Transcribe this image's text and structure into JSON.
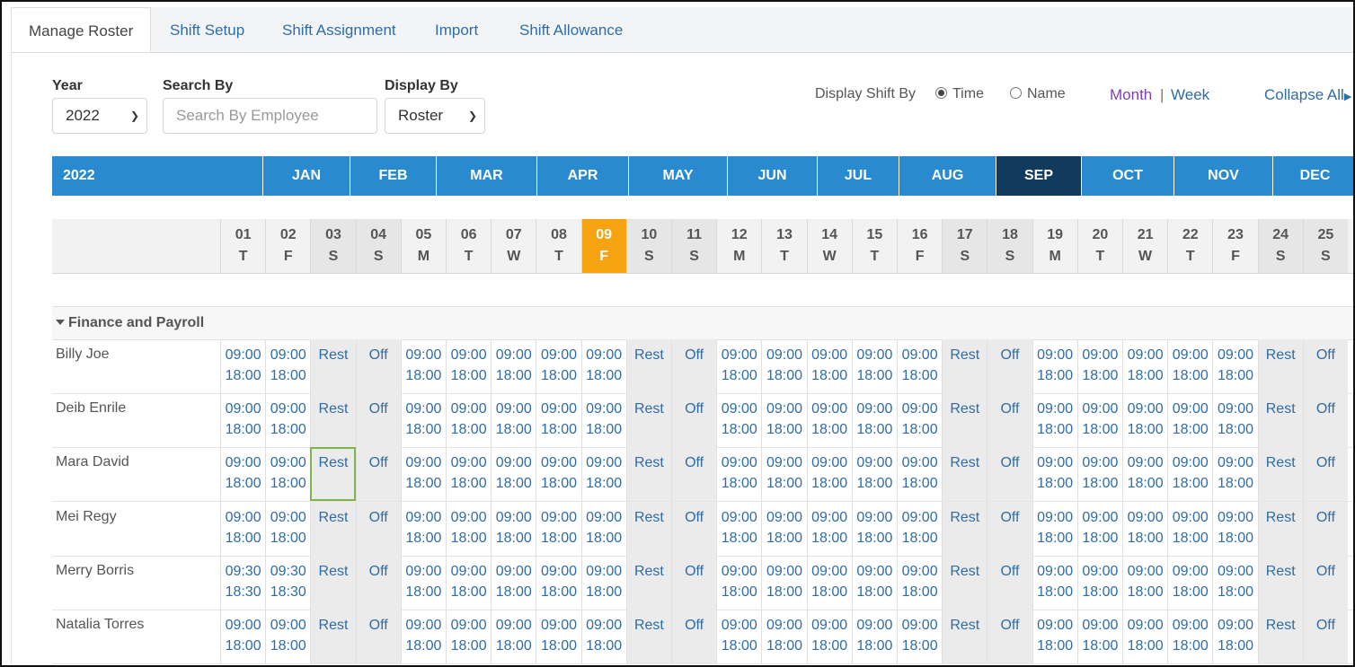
{
  "tabs": [
    {
      "label": "Manage Roster",
      "active": true
    },
    {
      "label": "Shift Setup",
      "active": false
    },
    {
      "label": "Shift Assignment",
      "active": false
    },
    {
      "label": "Import",
      "active": false
    },
    {
      "label": "Shift Allowance",
      "active": false
    }
  ],
  "filters": {
    "year_label": "Year",
    "year_value": "2022",
    "search_label": "Search By",
    "search_placeholder": "Search By Employee",
    "display_label": "Display By",
    "display_value": "Roster"
  },
  "display_shift": {
    "label": "Display Shift By",
    "options": [
      {
        "label": "Time",
        "selected": true
      },
      {
        "label": "Name",
        "selected": false
      }
    ]
  },
  "view_toggle": {
    "month": "Month",
    "separator": "|",
    "week": "Week"
  },
  "collapse_all": "Collapse All",
  "months_bar": {
    "year": "2022",
    "months": [
      "JAN",
      "FEB",
      "MAR",
      "APR",
      "MAY",
      "JUN",
      "JUL",
      "AUG",
      "SEP",
      "OCT",
      "NOV",
      "DEC"
    ],
    "selected": "SEP"
  },
  "days": [
    {
      "num": "01",
      "dow": "T"
    },
    {
      "num": "02",
      "dow": "F"
    },
    {
      "num": "03",
      "dow": "S",
      "weekend": true
    },
    {
      "num": "04",
      "dow": "S",
      "weekend": true
    },
    {
      "num": "05",
      "dow": "M"
    },
    {
      "num": "06",
      "dow": "T"
    },
    {
      "num": "07",
      "dow": "W"
    },
    {
      "num": "08",
      "dow": "T"
    },
    {
      "num": "09",
      "dow": "F",
      "today": true
    },
    {
      "num": "10",
      "dow": "S",
      "weekend": true
    },
    {
      "num": "11",
      "dow": "S",
      "weekend": true
    },
    {
      "num": "12",
      "dow": "M"
    },
    {
      "num": "13",
      "dow": "T"
    },
    {
      "num": "14",
      "dow": "W"
    },
    {
      "num": "15",
      "dow": "T"
    },
    {
      "num": "16",
      "dow": "F"
    },
    {
      "num": "17",
      "dow": "S",
      "weekend": true
    },
    {
      "num": "18",
      "dow": "S",
      "weekend": true
    },
    {
      "num": "19",
      "dow": "M"
    },
    {
      "num": "20",
      "dow": "T"
    },
    {
      "num": "21",
      "dow": "W"
    },
    {
      "num": "22",
      "dow": "T"
    },
    {
      "num": "23",
      "dow": "F"
    },
    {
      "num": "24",
      "dow": "S",
      "weekend": true
    },
    {
      "num": "25",
      "dow": "S",
      "weekend": true
    }
  ],
  "group": {
    "name": "Finance and Payroll"
  },
  "employees": [
    {
      "name": "Billy Joe",
      "first": [
        "09:00",
        "18:00"
      ]
    },
    {
      "name": "Deib Enrile",
      "first": [
        "09:00",
        "18:00"
      ]
    },
    {
      "name": "Mara David",
      "first": [
        "09:00",
        "18:00"
      ]
    },
    {
      "name": "Mei Regy",
      "first": [
        "09:00",
        "18:00"
      ]
    },
    {
      "name": "Merry Borris",
      "first": [
        "09:30",
        "18:30"
      ]
    },
    {
      "name": "Natalia Torres",
      "first": [
        "09:00",
        "18:00"
      ]
    }
  ],
  "shift_default": [
    "09:00",
    "18:00"
  ],
  "rest_label": "Rest",
  "off_label": "Off",
  "focused_cell": {
    "employee": "Mara David",
    "day": "03"
  },
  "colors": {
    "accent": "#2a8ad0",
    "selected_month": "#123a5c",
    "today": "#f6a312",
    "link": "#2f6ca6",
    "month_link": "#7b3fb5"
  }
}
